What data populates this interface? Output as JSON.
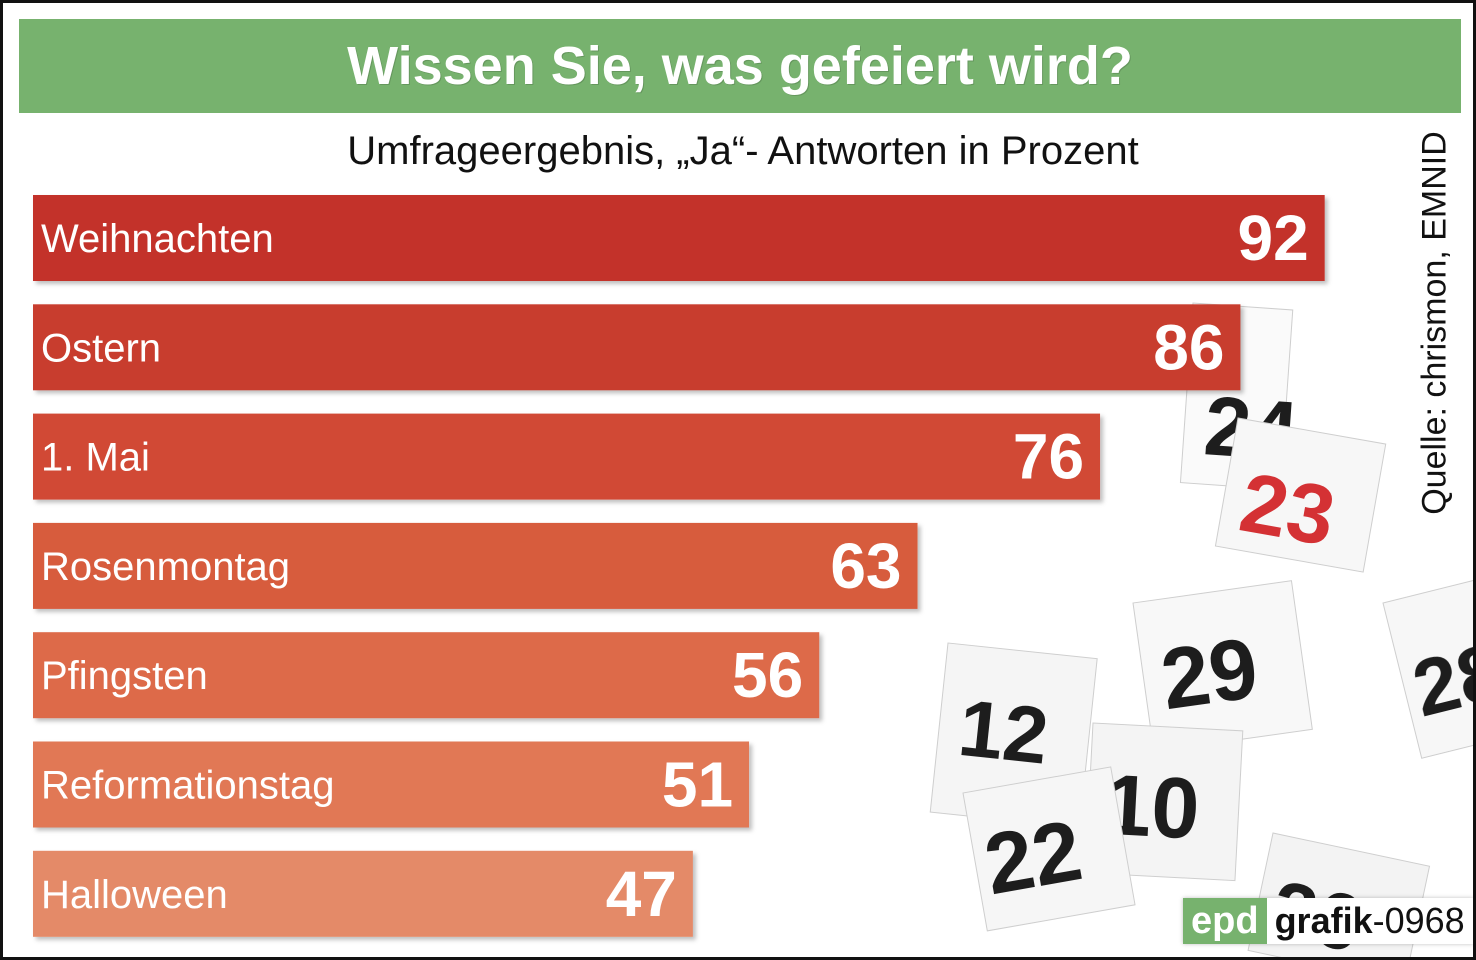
{
  "header": {
    "title": "Wissen Sie, was gefeiert wird?",
    "subtitle": "Umfrageergebnis, „Ja“- Antworten in Prozent"
  },
  "source": "Quelle: chrismon, EMNID",
  "logo": {
    "brand": "epd",
    "graphic_label": "grafik",
    "graphic_id": "-0968"
  },
  "colors": {
    "title_bar": "#77b26e",
    "bar_top": "#c3302b",
    "bar_bottom": "#e48a68",
    "text_on_bar": "#ffffff"
  },
  "chart_data": {
    "type": "bar",
    "orientation": "horizontal",
    "title": "Wissen Sie, was gefeiert wird?",
    "subtitle": "Umfrageergebnis, „Ja“- Antworten in Prozent",
    "categories": [
      "Weihnachten",
      "Ostern",
      "1. Mai",
      "Rosenmontag",
      "Pfingsten",
      "Reformationstag",
      "Halloween"
    ],
    "values": [
      92,
      86,
      76,
      63,
      56,
      51,
      47
    ],
    "unit": "Prozent",
    "xlim": [
      0,
      100
    ],
    "grid": false,
    "legend": "none",
    "bar_colors": [
      "#c3302b",
      "#c83c2f",
      "#d14a35",
      "#d75b3e",
      "#dd6a4a",
      "#e17855",
      "#e48a68"
    ]
  }
}
